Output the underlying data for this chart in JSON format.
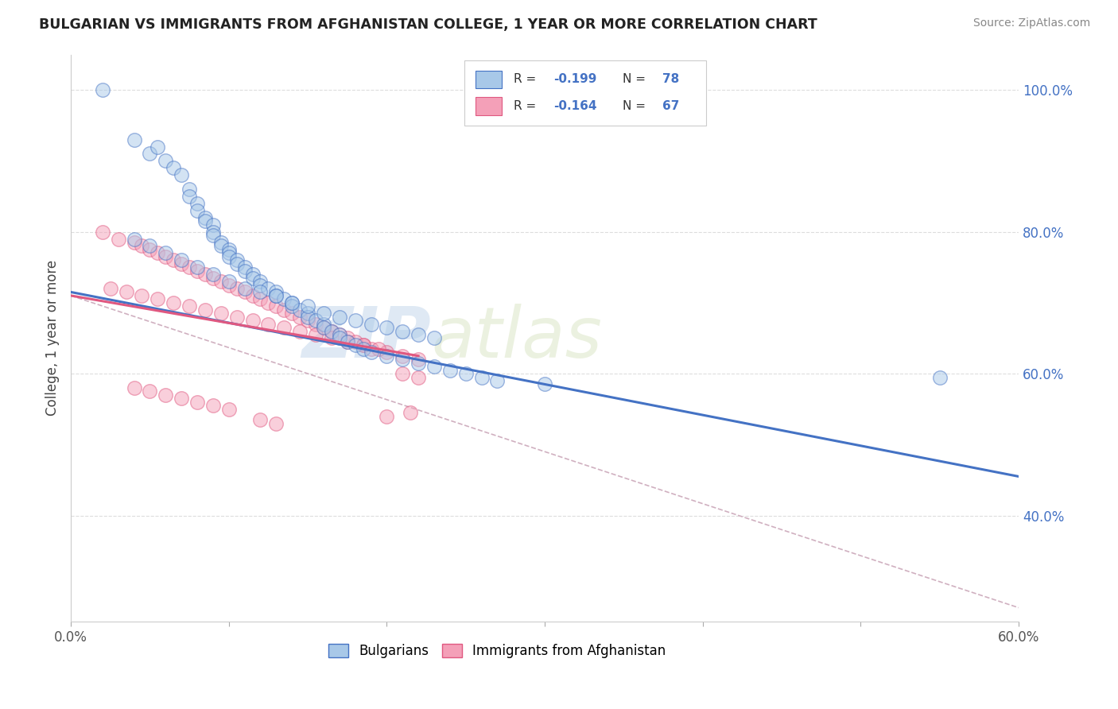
{
  "title": "BULGARIAN VS IMMIGRANTS FROM AFGHANISTAN COLLEGE, 1 YEAR OR MORE CORRELATION CHART",
  "source": "Source: ZipAtlas.com",
  "ylabel": "College, 1 year or more",
  "xlim": [
    0.0,
    0.6
  ],
  "ylim": [
    0.25,
    1.05
  ],
  "x_ticks": [
    0.0,
    0.1,
    0.2,
    0.3,
    0.4,
    0.5,
    0.6
  ],
  "y_ticks_right": [
    0.4,
    0.6,
    0.8,
    1.0
  ],
  "y_tick_labels_right": [
    "40.0%",
    "60.0%",
    "80.0%",
    "100.0%"
  ],
  "color_blue": "#a8c8e8",
  "color_pink": "#f4a0b8",
  "color_line_blue": "#4472c4",
  "color_line_pink": "#e05880",
  "color_line_dashed": "#d0b0c0",
  "watermark_zip": "ZIP",
  "watermark_atlas": "atlas",
  "blue_scatter_x": [
    0.02,
    0.04,
    0.05,
    0.055,
    0.06,
    0.065,
    0.07,
    0.075,
    0.075,
    0.08,
    0.08,
    0.085,
    0.085,
    0.09,
    0.09,
    0.09,
    0.095,
    0.095,
    0.1,
    0.1,
    0.1,
    0.105,
    0.105,
    0.11,
    0.11,
    0.115,
    0.115,
    0.12,
    0.12,
    0.125,
    0.13,
    0.13,
    0.135,
    0.14,
    0.14,
    0.145,
    0.15,
    0.15,
    0.155,
    0.16,
    0.16,
    0.165,
    0.17,
    0.17,
    0.175,
    0.18,
    0.185,
    0.19,
    0.2,
    0.21,
    0.22,
    0.23,
    0.24,
    0.25,
    0.26,
    0.27,
    0.3,
    0.55,
    0.04,
    0.05,
    0.06,
    0.07,
    0.08,
    0.09,
    0.1,
    0.11,
    0.12,
    0.13,
    0.14,
    0.15,
    0.16,
    0.17,
    0.18,
    0.19,
    0.2,
    0.21,
    0.22,
    0.23
  ],
  "blue_scatter_y": [
    1.0,
    0.93,
    0.91,
    0.92,
    0.9,
    0.89,
    0.88,
    0.86,
    0.85,
    0.84,
    0.83,
    0.82,
    0.815,
    0.81,
    0.8,
    0.795,
    0.785,
    0.78,
    0.775,
    0.77,
    0.765,
    0.76,
    0.755,
    0.75,
    0.745,
    0.74,
    0.735,
    0.73,
    0.725,
    0.72,
    0.715,
    0.71,
    0.705,
    0.7,
    0.695,
    0.69,
    0.685,
    0.68,
    0.675,
    0.67,
    0.665,
    0.66,
    0.655,
    0.65,
    0.645,
    0.64,
    0.635,
    0.63,
    0.625,
    0.62,
    0.615,
    0.61,
    0.605,
    0.6,
    0.595,
    0.59,
    0.585,
    0.595,
    0.79,
    0.78,
    0.77,
    0.76,
    0.75,
    0.74,
    0.73,
    0.72,
    0.715,
    0.71,
    0.7,
    0.695,
    0.685,
    0.68,
    0.675,
    0.67,
    0.665,
    0.66,
    0.655,
    0.65
  ],
  "pink_scatter_x": [
    0.02,
    0.03,
    0.04,
    0.045,
    0.05,
    0.055,
    0.06,
    0.065,
    0.07,
    0.075,
    0.08,
    0.085,
    0.09,
    0.095,
    0.1,
    0.105,
    0.11,
    0.115,
    0.12,
    0.125,
    0.13,
    0.135,
    0.14,
    0.145,
    0.15,
    0.155,
    0.16,
    0.165,
    0.17,
    0.175,
    0.18,
    0.185,
    0.19,
    0.2,
    0.21,
    0.22,
    0.025,
    0.035,
    0.045,
    0.055,
    0.065,
    0.075,
    0.085,
    0.095,
    0.105,
    0.115,
    0.125,
    0.135,
    0.145,
    0.155,
    0.165,
    0.175,
    0.185,
    0.195,
    0.21,
    0.22,
    0.04,
    0.05,
    0.06,
    0.07,
    0.08,
    0.09,
    0.1,
    0.215,
    0.2,
    0.12,
    0.13
  ],
  "pink_scatter_y": [
    0.8,
    0.79,
    0.785,
    0.78,
    0.775,
    0.77,
    0.765,
    0.76,
    0.755,
    0.75,
    0.745,
    0.74,
    0.735,
    0.73,
    0.725,
    0.72,
    0.715,
    0.71,
    0.705,
    0.7,
    0.695,
    0.69,
    0.685,
    0.68,
    0.675,
    0.67,
    0.665,
    0.66,
    0.655,
    0.65,
    0.645,
    0.64,
    0.635,
    0.63,
    0.625,
    0.62,
    0.72,
    0.715,
    0.71,
    0.705,
    0.7,
    0.695,
    0.69,
    0.685,
    0.68,
    0.675,
    0.67,
    0.665,
    0.66,
    0.655,
    0.65,
    0.645,
    0.64,
    0.635,
    0.6,
    0.595,
    0.58,
    0.575,
    0.57,
    0.565,
    0.56,
    0.555,
    0.55,
    0.545,
    0.54,
    0.535,
    0.53
  ],
  "blue_line_x": [
    0.0,
    0.6
  ],
  "blue_line_y": [
    0.715,
    0.455
  ],
  "pink_line_x": [
    0.0,
    0.22
  ],
  "pink_line_y": [
    0.71,
    0.625
  ],
  "dashed_line_x": [
    0.0,
    0.6
  ],
  "dashed_line_y": [
    0.71,
    0.27
  ],
  "background_color": "#ffffff",
  "grid_color": "#dddddd"
}
